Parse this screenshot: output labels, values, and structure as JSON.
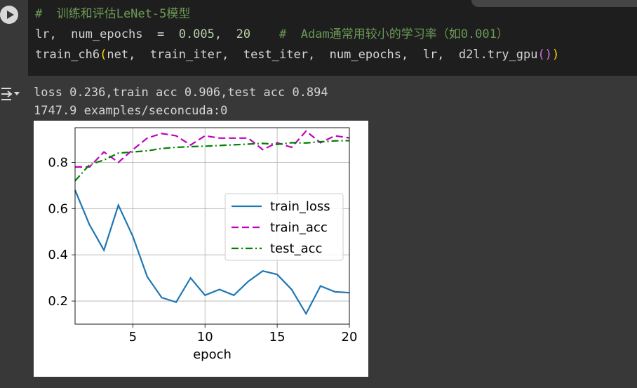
{
  "code": {
    "line1": {
      "comment": "#  训练和评估LeNet-5模型"
    },
    "line2": {
      "lhs": "lr,  num_epochs  =  ",
      "v1": "0.005",
      "sep": ",  ",
      "v2": "20",
      "gap": "    ",
      "comment": "#  Adam通常用较小的学习率（如0.001）"
    },
    "line3": {
      "call": "train_ch6",
      "open": "(",
      "args": "net,  train_iter,  test_iter,  num_epochs,  lr,  d2l.try_gpu",
      "inner": "()",
      "close": ")"
    }
  },
  "output": {
    "line1": "loss 0.236,train acc 0.906,test acc 0.894",
    "line2": "1747.9 examples/seconcuda:0"
  },
  "chart_data": {
    "type": "line",
    "xlabel": "epoch",
    "ylabel": "",
    "xlim": [
      1,
      20
    ],
    "ylim": [
      0.1,
      0.95
    ],
    "xticks": [
      "5",
      "10",
      "15",
      "20"
    ],
    "xtick_values": [
      5,
      10,
      15,
      20
    ],
    "yticks": [
      "0.2",
      "0.4",
      "0.6",
      "0.8"
    ],
    "ytick_values": [
      0.2,
      0.4,
      0.6,
      0.8
    ],
    "grid": true,
    "legend_position": "center-right",
    "series": [
      {
        "name": "train_loss",
        "color": "#1f77b4",
        "style": "solid",
        "x": [
          1,
          2,
          3,
          4,
          5,
          6,
          7,
          8,
          9,
          10,
          11,
          12,
          13,
          14,
          15,
          16,
          17,
          18,
          19,
          20
        ],
        "values": [
          0.68,
          0.53,
          0.42,
          0.615,
          0.48,
          0.305,
          0.215,
          0.195,
          0.3,
          0.225,
          0.25,
          0.225,
          0.285,
          0.33,
          0.315,
          0.25,
          0.145,
          0.265,
          0.24,
          0.236
        ]
      },
      {
        "name": "train_acc",
        "color": "#bf00bf",
        "style": "dashed",
        "x": [
          1,
          2,
          3,
          4,
          5,
          6,
          7,
          8,
          9,
          10,
          11,
          12,
          13,
          14,
          15,
          16,
          17,
          18,
          19,
          20
        ],
        "values": [
          0.78,
          0.78,
          0.845,
          0.8,
          0.855,
          0.905,
          0.925,
          0.915,
          0.875,
          0.915,
          0.905,
          0.905,
          0.905,
          0.855,
          0.885,
          0.865,
          0.935,
          0.885,
          0.915,
          0.906
        ]
      },
      {
        "name": "test_acc",
        "color": "#008000",
        "style": "dashdot",
        "x": [
          1,
          2,
          3,
          4,
          5,
          6,
          7,
          8,
          9,
          10,
          11,
          12,
          13,
          14,
          15,
          16,
          17,
          18,
          19,
          20
        ],
        "values": [
          0.72,
          0.79,
          0.81,
          0.84,
          0.845,
          0.85,
          0.86,
          0.865,
          0.868,
          0.87,
          0.873,
          0.876,
          0.879,
          0.882,
          0.878,
          0.885,
          0.884,
          0.889,
          0.893,
          0.894
        ]
      }
    ]
  }
}
